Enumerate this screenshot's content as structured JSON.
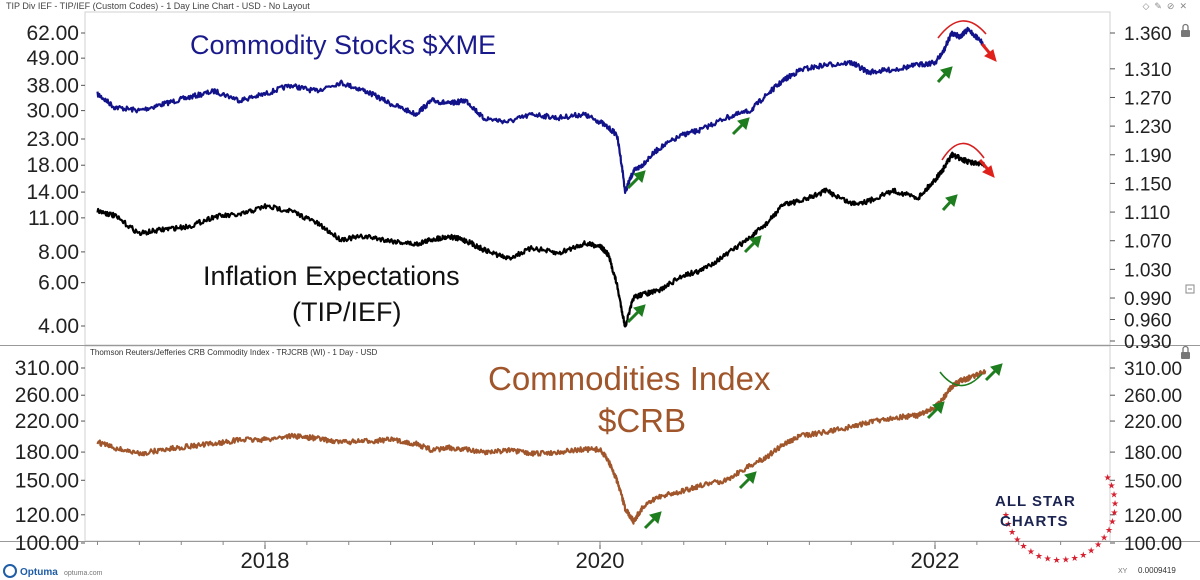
{
  "window": {
    "title": "TIP Div IEF - TIP/IEF (Custom Codes) - 1 Day Line Chart - USD - No Layout"
  },
  "panel2_header": "Thomson Reuters/Jefferies CRB Commodity Index - TRJCRB (WI) - 1 Day - USD",
  "footer": {
    "logo": "Optuma",
    "logo_small": "optuma.com",
    "value_readout": "0.0009419",
    "xy_label": "XY"
  },
  "brand": {
    "line1": "ALL STAR",
    "line2": "CHARTS"
  },
  "colors": {
    "xme": "#12128a",
    "inflation": "#000000",
    "crb": "#a0552a",
    "arrow_up": "#1e7d1e",
    "arrow_down": "#e0211b",
    "arc": "#d62020",
    "star": "#d62030",
    "brand_text": "#1c2452"
  },
  "chart_data": [
    {
      "type": "line",
      "panel": "top",
      "title": "",
      "annotations": [
        "Commodity Stocks $XME",
        "Inflation Expectations",
        "(TIP/IEF)"
      ],
      "x_ticks": [
        "2018",
        "2020",
        "2022"
      ],
      "y_ticks_left": [
        "62.00",
        "49.00",
        "38.00",
        "30.00",
        "23.00",
        "18.00",
        "14.00",
        "11.00",
        "8.00",
        "6.00",
        "4.00"
      ],
      "y_ticks_right": [
        "1.360",
        "1.310",
        "1.270",
        "1.230",
        "1.190",
        "1.150",
        "1.110",
        "1.070",
        "1.030",
        "0.990",
        "0.960",
        "0.930"
      ],
      "left_scale": "log",
      "grid": false,
      "series": [
        {
          "name": "Commodity Stocks $XME",
          "axis": "left",
          "x": [
            2017.0,
            2017.1,
            2017.25,
            2017.4,
            2017.55,
            2017.7,
            2017.85,
            2018.0,
            2018.15,
            2018.3,
            2018.45,
            2018.6,
            2018.75,
            2018.9,
            2019.0,
            2019.1,
            2019.2,
            2019.3,
            2019.45,
            2019.6,
            2019.75,
            2019.9,
            2020.0,
            2020.1,
            2020.15,
            2020.2,
            2020.25,
            2020.35,
            2020.5,
            2020.6,
            2020.75,
            2020.9,
            2021.0,
            2021.1,
            2021.2,
            2021.35,
            2021.5,
            2021.6,
            2021.75,
            2021.9,
            2022.0,
            2022.05,
            2022.1,
            2022.15,
            2022.2,
            2022.3
          ],
          "y": [
            35,
            31,
            30,
            32,
            34,
            36,
            33,
            35,
            38,
            36,
            39,
            36,
            32,
            29,
            33,
            32,
            33,
            28,
            27,
            29,
            28,
            29,
            27,
            24,
            14,
            17,
            18,
            21,
            24,
            25,
            28,
            30,
            35,
            40,
            44,
            46,
            47,
            43,
            44,
            46,
            47,
            52,
            62,
            60,
            64,
            55
          ]
        },
        {
          "name": "Inflation Expectations (TIP/IEF)",
          "axis": "right",
          "x": [
            2017.0,
            2017.1,
            2017.25,
            2017.4,
            2017.55,
            2017.7,
            2017.85,
            2018.0,
            2018.15,
            2018.3,
            2018.45,
            2018.6,
            2018.75,
            2018.9,
            2019.0,
            2019.1,
            2019.2,
            2019.3,
            2019.45,
            2019.6,
            2019.75,
            2019.9,
            2020.0,
            2020.05,
            2020.1,
            2020.15,
            2020.2,
            2020.25,
            2020.35,
            2020.5,
            2020.6,
            2020.75,
            2020.9,
            2021.0,
            2021.1,
            2021.2,
            2021.35,
            2021.5,
            2021.6,
            2021.75,
            2021.9,
            2022.0,
            2022.05,
            2022.1,
            2022.15,
            2022.2,
            2022.3
          ],
          "y": [
            1.112,
            1.105,
            1.08,
            1.086,
            1.09,
            1.104,
            1.106,
            1.118,
            1.112,
            1.096,
            1.072,
            1.076,
            1.07,
            1.065,
            1.072,
            1.076,
            1.07,
            1.058,
            1.045,
            1.06,
            1.052,
            1.066,
            1.063,
            1.05,
            1.01,
            0.95,
            0.99,
            0.995,
            1.0,
            1.022,
            1.028,
            1.05,
            1.075,
            1.095,
            1.122,
            1.125,
            1.14,
            1.122,
            1.125,
            1.14,
            1.13,
            1.155,
            1.17,
            1.19,
            1.185,
            1.18,
            1.175
          ]
        }
      ]
    },
    {
      "type": "line",
      "panel": "bottom",
      "title": "Thomson Reuters/Jefferies CRB Commodity Index - TRJCRB (WI) - 1 Day - USD",
      "annotations": [
        "Commodities Index",
        "$CRB"
      ],
      "x_ticks": [
        "2018",
        "2020",
        "2022"
      ],
      "y_ticks_left": [
        "310.00",
        "260.00",
        "220.00",
        "180.00",
        "150.00",
        "120.00",
        "100.00"
      ],
      "y_ticks_right": [
        "310.00",
        "260.00",
        "220.00",
        "180.00",
        "150.00",
        "120.00",
        "100.00"
      ],
      "grid": false,
      "series": [
        {
          "name": "Commodities Index $CRB",
          "axis": "both",
          "x": [
            2017.0,
            2017.1,
            2017.25,
            2017.4,
            2017.55,
            2017.7,
            2017.85,
            2018.0,
            2018.15,
            2018.3,
            2018.45,
            2018.6,
            2018.75,
            2018.9,
            2019.0,
            2019.1,
            2019.2,
            2019.3,
            2019.45,
            2019.6,
            2019.75,
            2019.9,
            2020.0,
            2020.05,
            2020.1,
            2020.15,
            2020.2,
            2020.25,
            2020.35,
            2020.5,
            2020.6,
            2020.75,
            2020.9,
            2021.0,
            2021.1,
            2021.2,
            2021.35,
            2021.5,
            2021.6,
            2021.75,
            2021.9,
            2022.0,
            2022.05,
            2022.1,
            2022.15,
            2022.2,
            2022.3
          ],
          "y": [
            192,
            185,
            178,
            183,
            187,
            190,
            195,
            195,
            200,
            197,
            192,
            193,
            195,
            190,
            182,
            185,
            183,
            180,
            182,
            178,
            180,
            183,
            183,
            170,
            150,
            125,
            115,
            125,
            135,
            140,
            145,
            150,
            165,
            175,
            190,
            200,
            205,
            212,
            218,
            225,
            228,
            240,
            255,
            275,
            285,
            290,
            305
          ]
        }
      ]
    }
  ]
}
